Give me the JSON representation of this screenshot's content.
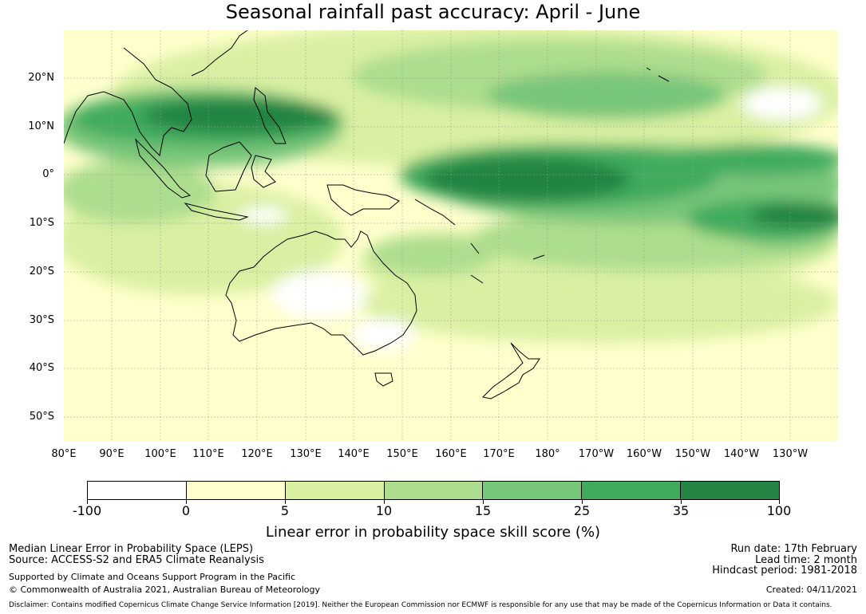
{
  "title": "Seasonal rainfall past accuracy: April - June",
  "lat_labels": [
    "20°N",
    "10°N",
    "0°",
    "10°S",
    "20°S",
    "30°S",
    "40°S",
    "50°S"
  ],
  "lon_labels": [
    "80°E",
    "90°E",
    "100°E",
    "110°E",
    "120°E",
    "130°E",
    "140°E",
    "150°E",
    "160°E",
    "170°E",
    "180°",
    "170°W",
    "160°W",
    "150°W",
    "140°W",
    "130°W"
  ],
  "colorbar": {
    "tick_labels": [
      "-100",
      "0",
      "5",
      "10",
      "15",
      "25",
      "35",
      "100"
    ],
    "colors": [
      "#ffffff",
      "#ffffcc",
      "#d9f0a3",
      "#addd8e",
      "#78c679",
      "#41ab5d",
      "#238443"
    ],
    "title": "Linear error in probability space skill score (%)"
  },
  "footer": {
    "left1": "Median Linear Error in Probability Space (LEPS)",
    "left2": "Source: ACCESS-S2 and ERA5 Climate Reanalysis",
    "left3": "Supported by Climate and Oceans Support Program in the Pacific",
    "left4": "© Commonwealth of Australia 2021, Australian Bureau of Meteorology",
    "right1": "Run date: 17th February",
    "right2": "Lead time: 2 month",
    "right3": "Hindcast period: 1981-2018",
    "right4": "Created: 04/11/2021",
    "disclaimer": "Disclaimer: Contains modified Copernicus Climate Change Service Information [2019]. Neither the European Commission nor ECMWF is responsible for any use that may be made of the Copernicus Information or Data it contains."
  }
}
